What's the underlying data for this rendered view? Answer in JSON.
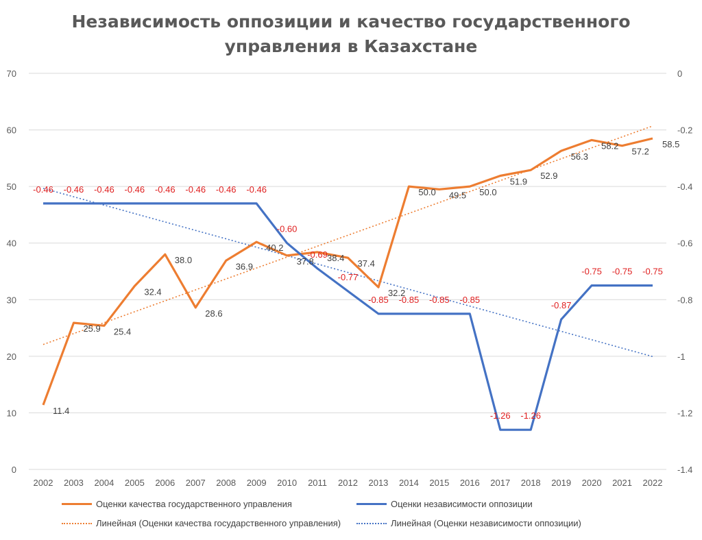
{
  "chart_data": {
    "type": "line",
    "title_lines": [
      "Независимость оппозиции и качество государственного",
      "управления в Казахстане"
    ],
    "categories": [
      "2002",
      "2003",
      "2004",
      "2005",
      "2006",
      "2007",
      "2008",
      "2009",
      "2010",
      "2011",
      "2012",
      "2013",
      "2014",
      "2015",
      "2016",
      "2017",
      "2018",
      "2019",
      "2020",
      "2021",
      "2022"
    ],
    "y_left": {
      "min": 0,
      "max": 70,
      "ticks": [
        "0",
        "10",
        "20",
        "30",
        "40",
        "50",
        "60",
        "70"
      ]
    },
    "y_right": {
      "min": -1.4,
      "max": 0,
      "ticks": [
        "-1.4",
        "-1.2",
        "-1",
        "-0.8",
        "-0.6",
        "-0.4",
        "-0.2",
        "0"
      ]
    },
    "grid": true,
    "legend_position": "bottom",
    "series": [
      {
        "name": "Оценки качества государственного управления",
        "axis": "left",
        "color": "#ED7D31",
        "values": [
          11.4,
          25.9,
          25.4,
          32.4,
          38.0,
          28.6,
          36.9,
          40.2,
          37.8,
          38.4,
          37.4,
          32.2,
          50.0,
          49.5,
          50.0,
          51.9,
          52.9,
          56.3,
          58.2,
          57.2,
          58.5
        ],
        "labels": [
          "11.4",
          "25.9",
          "25.4",
          "32.4",
          "38.0",
          "28.6",
          "36.9",
          "40.2",
          "37.8",
          "38.4",
          "37.4",
          "32.2",
          "50.0",
          "49.5",
          "50.0",
          "51.9",
          "52.9",
          "56.3",
          "58.2",
          "57.2",
          "58.5"
        ]
      },
      {
        "name": "Оценки независимости оппозиции",
        "axis": "right",
        "color": "#4472C4",
        "values": [
          -0.46,
          -0.46,
          -0.46,
          -0.46,
          -0.46,
          -0.46,
          -0.46,
          -0.46,
          -0.6,
          -0.69,
          -0.77,
          -0.85,
          -0.85,
          -0.85,
          -0.85,
          -1.26,
          -1.26,
          -0.87,
          -0.75,
          -0.75,
          -0.75
        ],
        "labels": [
          "-0.46",
          "-0.46",
          "-0.46",
          "-0.46",
          "-0.46",
          "-0.46",
          "-0.46",
          "-0.46",
          "-0.60",
          "-0.69",
          "-0.77",
          "-0.85",
          "-0.85",
          "-0.85",
          "-0.85",
          "-1.26",
          "-1.26",
          "-0.87",
          "-0.75",
          "-0.75",
          "-0.75"
        ],
        "label_color": "#E02020"
      }
    ],
    "trendlines": [
      {
        "name": "Линейная (Оценки качества государственного управления)",
        "of_series": 0,
        "color": "#ED7D31"
      },
      {
        "name": "Линейная (Оценки независимости оппозиции)",
        "of_series": 1,
        "color": "#4472C4"
      }
    ]
  }
}
